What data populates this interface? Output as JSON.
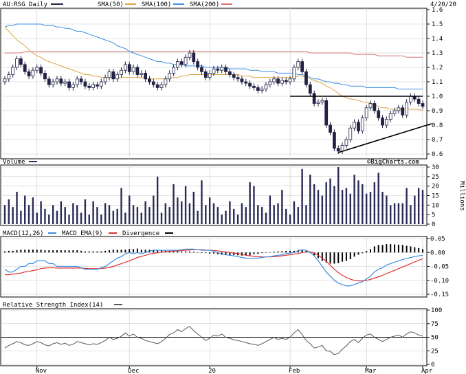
{
  "chart_data": {
    "type": "candlestick",
    "symbol_label": "AU:RSG Daily",
    "date_label": "4/20/20",
    "watermark": "©BigCharts.com",
    "colors": {
      "sma50": "#d9a441",
      "sma100": "#3b8de0",
      "sma200": "#d97070",
      "macd": "#3b8de0",
      "macd_ema": "#e03030",
      "divergence": "#000000",
      "price_series": "#222244",
      "volume_bar": "#2a2a55",
      "rsi_line": "#555566",
      "grid": "#c8c8c8",
      "trendline": "#000000"
    },
    "x_axis_ticks": [
      "Nov",
      "Dec",
      "20",
      "Feb",
      "Mar",
      "Apr"
    ],
    "price_panel": {
      "legend": [
        {
          "key": "symbol",
          "label": "AU:RSG Daily"
        },
        {
          "key": "sma50",
          "label": "SMA(50)"
        },
        {
          "key": "sma100",
          "label": "SMA(100)"
        },
        {
          "key": "sma200",
          "label": "SMA(200)"
        }
      ],
      "y_ticks": [
        "1.6",
        "1.5",
        "1.4",
        "1.3",
        "1.2",
        "1.1",
        "1.0",
        "0.9",
        "0.8",
        "0.7",
        "0.6"
      ],
      "y_range": [
        0.6,
        1.6
      ],
      "close": [
        1.12,
        1.15,
        1.2,
        1.26,
        1.22,
        1.17,
        1.14,
        1.18,
        1.2,
        1.16,
        1.12,
        1.08,
        1.1,
        1.12,
        1.09,
        1.1,
        1.06,
        1.08,
        1.12,
        1.1,
        1.07,
        1.06,
        1.08,
        1.07,
        1.1,
        1.13,
        1.17,
        1.12,
        1.15,
        1.18,
        1.22,
        1.17,
        1.2,
        1.15,
        1.16,
        1.12,
        1.1,
        1.08,
        1.06,
        1.08,
        1.12,
        1.16,
        1.2,
        1.24,
        1.22,
        1.27,
        1.3,
        1.24,
        1.2,
        1.17,
        1.13,
        1.16,
        1.19,
        1.18,
        1.2,
        1.17,
        1.15,
        1.13,
        1.12,
        1.1,
        1.09,
        1.07,
        1.06,
        1.04,
        1.05,
        1.08,
        1.1,
        1.12,
        1.09,
        1.11,
        1.1,
        1.12,
        1.2,
        1.24,
        1.17,
        1.08,
        1.02,
        0.95,
        0.96,
        0.97,
        0.8,
        0.75,
        0.64,
        0.62,
        0.66,
        0.7,
        0.78,
        0.82,
        0.76,
        0.85,
        0.92,
        0.95,
        0.9,
        0.85,
        0.8,
        0.84,
        0.88,
        0.9,
        0.92,
        0.87,
        0.96,
        1.0,
        0.98,
        0.95,
        0.93
      ],
      "sma50": [
        1.48,
        1.45,
        1.42,
        1.39,
        1.37,
        1.35,
        1.32,
        1.3,
        1.28,
        1.27,
        1.25,
        1.24,
        1.23,
        1.22,
        1.21,
        1.2,
        1.19,
        1.18,
        1.17,
        1.16,
        1.15,
        1.15,
        1.14,
        1.14,
        1.13,
        1.13,
        1.13,
        1.13,
        1.13,
        1.13,
        1.13,
        1.13,
        1.13,
        1.13,
        1.13,
        1.12,
        1.12,
        1.12,
        1.12,
        1.12,
        1.12,
        1.13,
        1.13,
        1.13,
        1.14,
        1.14,
        1.15,
        1.15,
        1.15,
        1.15,
        1.15,
        1.15,
        1.15,
        1.15,
        1.15,
        1.15,
        1.15,
        1.15,
        1.15,
        1.14,
        1.14,
        1.14,
        1.13,
        1.13,
        1.13,
        1.13,
        1.13,
        1.13,
        1.13,
        1.13,
        1.13,
        1.13,
        1.13,
        1.14,
        1.14,
        1.13,
        1.12,
        1.11,
        1.1,
        1.09,
        1.07,
        1.06,
        1.04,
        1.02,
        1.0,
        0.99,
        0.98,
        0.98,
        0.97,
        0.96,
        0.96,
        0.95,
        0.94,
        0.93,
        0.92,
        0.92,
        0.91,
        0.91,
        0.91,
        0.91,
        0.91,
        0.91,
        0.91,
        0.91,
        0.9
      ],
      "sma100": [
        1.48,
        1.49,
        1.49,
        1.5,
        1.5,
        1.5,
        1.5,
        1.5,
        1.5,
        1.5,
        1.49,
        1.49,
        1.49,
        1.48,
        1.48,
        1.47,
        1.47,
        1.46,
        1.45,
        1.45,
        1.44,
        1.43,
        1.42,
        1.41,
        1.4,
        1.39,
        1.38,
        1.37,
        1.35,
        1.34,
        1.33,
        1.31,
        1.3,
        1.29,
        1.28,
        1.27,
        1.26,
        1.25,
        1.24,
        1.24,
        1.23,
        1.23,
        1.22,
        1.22,
        1.22,
        1.21,
        1.21,
        1.21,
        1.21,
        1.21,
        1.2,
        1.2,
        1.2,
        1.2,
        1.2,
        1.2,
        1.19,
        1.19,
        1.19,
        1.19,
        1.19,
        1.18,
        1.18,
        1.18,
        1.17,
        1.17,
        1.17,
        1.17,
        1.16,
        1.16,
        1.16,
        1.16,
        1.16,
        1.15,
        1.15,
        1.14,
        1.13,
        1.12,
        1.12,
        1.11,
        1.1,
        1.1,
        1.09,
        1.09,
        1.08,
        1.08,
        1.07,
        1.07,
        1.07,
        1.07,
        1.06,
        1.06,
        1.06,
        1.06,
        1.06,
        1.06,
        1.06,
        1.06,
        1.05,
        1.05,
        1.05,
        1.05,
        1.05,
        1.05,
        1.05
      ],
      "sma200": [
        1.3,
        1.3,
        1.3,
        1.3,
        1.3,
        1.31,
        1.31,
        1.31,
        1.31,
        1.31,
        1.31,
        1.31,
        1.31,
        1.31,
        1.31,
        1.31,
        1.31,
        1.31,
        1.31,
        1.31,
        1.31,
        1.31,
        1.31,
        1.31,
        1.31,
        1.31,
        1.31,
        1.31,
        1.31,
        1.31,
        1.31,
        1.31,
        1.31,
        1.31,
        1.31,
        1.31,
        1.31,
        1.31,
        1.31,
        1.31,
        1.31,
        1.31,
        1.31,
        1.31,
        1.31,
        1.31,
        1.31,
        1.31,
        1.31,
        1.31,
        1.31,
        1.31,
        1.31,
        1.31,
        1.31,
        1.31,
        1.31,
        1.31,
        1.31,
        1.31,
        1.31,
        1.31,
        1.31,
        1.31,
        1.31,
        1.31,
        1.31,
        1.31,
        1.31,
        1.31,
        1.31,
        1.31,
        1.31,
        1.31,
        1.31,
        1.31,
        1.3,
        1.3,
        1.3,
        1.3,
        1.3,
        1.3,
        1.3,
        1.3,
        1.3,
        1.3,
        1.3,
        1.29,
        1.29,
        1.29,
        1.29,
        1.29,
        1.29,
        1.28,
        1.28,
        1.28,
        1.28,
        1.28,
        1.28,
        1.28,
        1.27,
        1.27,
        1.27,
        1.27,
        1.27
      ],
      "resistance_level": 1.0,
      "support_trendline": {
        "start": [
          83,
          0.61
        ],
        "end": [
          104,
          0.81
        ]
      }
    },
    "volume_panel": {
      "legend": [
        {
          "key": "volume",
          "label": "Volume"
        }
      ],
      "y_ticks": [
        "30",
        "25",
        "20",
        "15",
        "10",
        "5",
        "0"
      ],
      "y_range": [
        0,
        30
      ],
      "y_unit": "Millions",
      "values": [
        10,
        13,
        9,
        17,
        7,
        15,
        10,
        14,
        6,
        12,
        8,
        5,
        10,
        7,
        12,
        9,
        5,
        11,
        10,
        6,
        13,
        5,
        12,
        9,
        5,
        11,
        10,
        7,
        8,
        19,
        6,
        15,
        10,
        9,
        6,
        12,
        9,
        15,
        25,
        6,
        11,
        9,
        21,
        14,
        12,
        20,
        11,
        17,
        7,
        23,
        10,
        14,
        11,
        9,
        5,
        7,
        12,
        8,
        5,
        11,
        9,
        22,
        20,
        10,
        9,
        6,
        15,
        10,
        11,
        18,
        8,
        5,
        12,
        9,
        29,
        10,
        26,
        21,
        18,
        15,
        22,
        24,
        20,
        30,
        18,
        19,
        16,
        26,
        23,
        21,
        16,
        17,
        22,
        27,
        17,
        15,
        10,
        11,
        11,
        11,
        19,
        10,
        15,
        19,
        18
      ]
    },
    "macd_panel": {
      "legend": [
        {
          "key": "macd",
          "label": "MACD(12,26)"
        },
        {
          "key": "macd_ema",
          "label": "MACD EMA(9)"
        },
        {
          "key": "divergence",
          "label": "Divergence"
        }
      ],
      "y_ticks": [
        "0.05",
        "0.00",
        "-0.05",
        "-0.10",
        "-0.15"
      ],
      "y_range": [
        -0.15,
        0.05
      ],
      "macd": [
        -0.06,
        -0.07,
        -0.07,
        -0.06,
        -0.05,
        -0.05,
        -0.04,
        -0.04,
        -0.03,
        -0.03,
        -0.03,
        -0.04,
        -0.04,
        -0.05,
        -0.05,
        -0.05,
        -0.05,
        -0.05,
        -0.05,
        -0.055,
        -0.06,
        -0.06,
        -0.06,
        -0.06,
        -0.055,
        -0.05,
        -0.04,
        -0.03,
        -0.02,
        -0.015,
        -0.005,
        0.0,
        -0.005,
        0.0,
        -0.005,
        0.0,
        0.005,
        0.008,
        0.008,
        0.008,
        0.008,
        0.008,
        0.008,
        0.008,
        0.01,
        0.012,
        0.012,
        0.012,
        0.01,
        0.008,
        0.008,
        0.008,
        0.004,
        0.0,
        -0.005,
        -0.008,
        -0.01,
        -0.012,
        -0.015,
        -0.018,
        -0.02,
        -0.022,
        -0.02,
        -0.02,
        -0.018,
        -0.016,
        -0.015,
        -0.012,
        -0.01,
        -0.008,
        -0.004,
        -0.002,
        0.0,
        0.005,
        0.01,
        0.008,
        0.0,
        -0.012,
        -0.03,
        -0.05,
        -0.07,
        -0.085,
        -0.1,
        -0.11,
        -0.115,
        -0.12,
        -0.12,
        -0.115,
        -0.11,
        -0.105,
        -0.095,
        -0.085,
        -0.07,
        -0.06,
        -0.055,
        -0.045,
        -0.04,
        -0.035,
        -0.03,
        -0.025,
        -0.022,
        -0.018,
        -0.015,
        -0.012,
        -0.01
      ],
      "macd_ema": [
        -0.08,
        -0.08,
        -0.078,
        -0.076,
        -0.074,
        -0.07,
        -0.068,
        -0.065,
        -0.062,
        -0.058,
        -0.056,
        -0.055,
        -0.055,
        -0.056,
        -0.056,
        -0.056,
        -0.056,
        -0.056,
        -0.056,
        -0.056,
        -0.057,
        -0.058,
        -0.058,
        -0.058,
        -0.058,
        -0.056,
        -0.054,
        -0.05,
        -0.045,
        -0.04,
        -0.035,
        -0.03,
        -0.024,
        -0.018,
        -0.014,
        -0.01,
        -0.006,
        -0.003,
        -0.001,
        0.001,
        0.003,
        0.004,
        0.005,
        0.006,
        0.007,
        0.008,
        0.009,
        0.01,
        0.01,
        0.01,
        0.009,
        0.008,
        0.007,
        0.006,
        0.004,
        0.002,
        0.0,
        -0.002,
        -0.004,
        -0.007,
        -0.01,
        -0.012,
        -0.014,
        -0.015,
        -0.016,
        -0.016,
        -0.016,
        -0.015,
        -0.014,
        -0.012,
        -0.01,
        -0.008,
        -0.006,
        -0.004,
        0.0,
        0.002,
        0.002,
        -0.002,
        -0.01,
        -0.02,
        -0.032,
        -0.046,
        -0.06,
        -0.072,
        -0.082,
        -0.09,
        -0.096,
        -0.1,
        -0.102,
        -0.102,
        -0.1,
        -0.097,
        -0.092,
        -0.087,
        -0.082,
        -0.076,
        -0.07,
        -0.064,
        -0.058,
        -0.052,
        -0.046,
        -0.04,
        -0.034,
        -0.028,
        -0.022
      ],
      "divergence": [
        0.004,
        0.006,
        0.006,
        0.008,
        0.01,
        0.01,
        0.01,
        0.01,
        0.01,
        0.01,
        0.008,
        0.008,
        0.008,
        0.008,
        0.008,
        0.008,
        0.008,
        0.008,
        0.008,
        0.006,
        0.004,
        0.004,
        0.004,
        0.004,
        0.004,
        0.006,
        0.008,
        0.01,
        0.01,
        0.01,
        0.01,
        0.012,
        0.012,
        0.014,
        0.01,
        0.01,
        0.01,
        0.01,
        0.01,
        0.008,
        0.006,
        0.006,
        0.006,
        0.006,
        0.004,
        0.004,
        0.004,
        0.003,
        0.0,
        -0.002,
        -0.002,
        -0.004,
        -0.004,
        -0.006,
        -0.008,
        -0.009,
        -0.01,
        -0.009,
        -0.01,
        -0.011,
        -0.01,
        -0.01,
        -0.006,
        -0.005,
        -0.002,
        0.0,
        0.001,
        0.003,
        0.004,
        0.004,
        0.006,
        0.006,
        0.006,
        0.009,
        0.01,
        0.006,
        -0.002,
        -0.01,
        -0.02,
        -0.03,
        -0.036,
        -0.04,
        -0.04,
        -0.038,
        -0.033,
        -0.03,
        -0.024,
        -0.015,
        -0.008,
        -0.003,
        0.005,
        0.012,
        0.022,
        0.027,
        0.027,
        0.03,
        0.03,
        0.029,
        0.028,
        0.027,
        0.024,
        0.022,
        0.019,
        0.016,
        0.012
      ]
    },
    "rsi_panel": {
      "legend": [
        {
          "key": "rsi",
          "label": "Relative Strength Index(14)"
        }
      ],
      "y_ticks": [
        "100",
        "75",
        "50",
        "25",
        "0"
      ],
      "y_range": [
        0,
        100
      ],
      "reference_level": 50,
      "values": [
        30,
        35,
        38,
        42,
        40,
        36,
        35,
        38,
        42,
        40,
        36,
        34,
        38,
        40,
        37,
        39,
        35,
        37,
        42,
        40,
        38,
        36,
        38,
        37,
        40,
        44,
        50,
        46,
        48,
        52,
        58,
        52,
        56,
        50,
        48,
        44,
        42,
        40,
        38,
        42,
        48,
        55,
        58,
        64,
        60,
        66,
        70,
        62,
        56,
        50,
        44,
        48,
        54,
        52,
        56,
        50,
        48,
        45,
        44,
        42,
        40,
        38,
        37,
        35,
        38,
        42,
        46,
        50,
        46,
        48,
        46,
        50,
        58,
        64,
        55,
        44,
        38,
        30,
        32,
        35,
        25,
        24,
        18,
        20,
        28,
        34,
        42,
        46,
        40,
        48,
        54,
        56,
        50,
        46,
        42,
        46,
        50,
        52,
        54,
        50,
        56,
        60,
        58,
        54,
        52
      ]
    }
  }
}
